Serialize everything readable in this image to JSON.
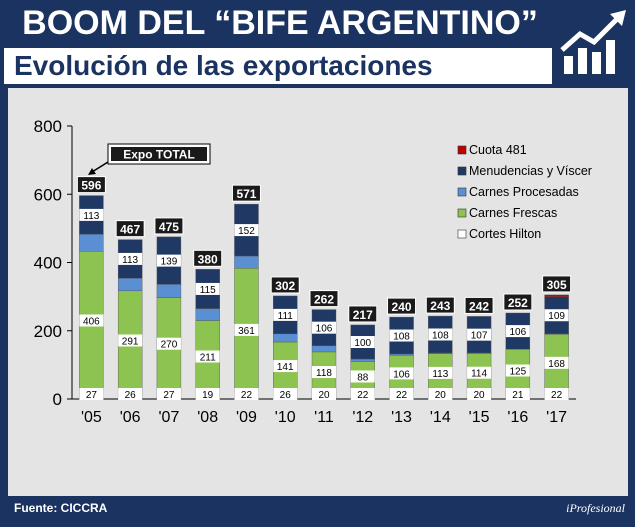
{
  "header": {
    "title": "BOOM DEL “BIFE ARGENTINO”",
    "subtitle": "Evolución de las exportaciones",
    "logo_icon": "growth-chart-arrow-icon"
  },
  "footer": {
    "source": "Fuente: CICCRA",
    "brand": "iProfesional"
  },
  "annotation": {
    "label": "Expo TOTAL"
  },
  "colors": {
    "background": "#1b3360",
    "panel": "#e4e4e4",
    "Cortes Hilton": "#ffffff",
    "Carnes Frescas": "#8dc350",
    "Carnes Procesadas": "#5a8fd4",
    "Menudencias y Víscer": "#1f3864",
    "Cuota 481": "#c00000"
  },
  "chart_data": {
    "type": "bar",
    "stacked": true,
    "categories": [
      "'05",
      "'06",
      "'07",
      "'08",
      "'09",
      "'10",
      "'11",
      "'12",
      "'13",
      "'14",
      "'15",
      "'16",
      "'17"
    ],
    "ylim": [
      0,
      800
    ],
    "yticks": [
      0,
      200,
      400,
      600,
      800
    ],
    "legend_position": "right",
    "series": [
      {
        "name": "Cortes Hilton",
        "values": [
          27,
          26,
          27,
          19,
          22,
          26,
          20,
          22,
          22,
          20,
          20,
          21,
          22
        ]
      },
      {
        "name": "Carnes Frescas",
        "values": [
          406,
          291,
          270,
          211,
          361,
          141,
          118,
          88,
          106,
          113,
          114,
          125,
          168
        ]
      },
      {
        "name": "Carnes Procesadas",
        "values": [
          50,
          37,
          39,
          35,
          36,
          24,
          18,
          7,
          4,
          2,
          1,
          0,
          1
        ]
      },
      {
        "name": "Menudencias y Víscer",
        "values": [
          113,
          113,
          139,
          115,
          152,
          111,
          106,
          100,
          108,
          108,
          107,
          106,
          109
        ]
      },
      {
        "name": "Cuota 481",
        "values": [
          0,
          0,
          0,
          0,
          0,
          0,
          0,
          0,
          0,
          0,
          0,
          0,
          5
        ]
      }
    ],
    "data_labels": {
      "Cortes Hilton": [
        "27",
        "26",
        "27",
        "19",
        "22",
        "26",
        "20",
        "22",
        "22",
        "20",
        "20",
        "21",
        "22"
      ],
      "Carnes Frescas": [
        "406",
        "291",
        "270",
        "211",
        "361",
        "141",
        "118",
        "88",
        "106",
        "113",
        "114",
        "125",
        "168"
      ],
      "Menudencias y Víscer": [
        "113",
        "113",
        "139",
        "115",
        "152",
        "111",
        "106",
        "100",
        "108",
        "108",
        "107",
        "106",
        "109"
      ]
    },
    "totals": [
      596,
      467,
      475,
      380,
      571,
      302,
      262,
      217,
      240,
      243,
      242,
      252,
      305
    ]
  }
}
